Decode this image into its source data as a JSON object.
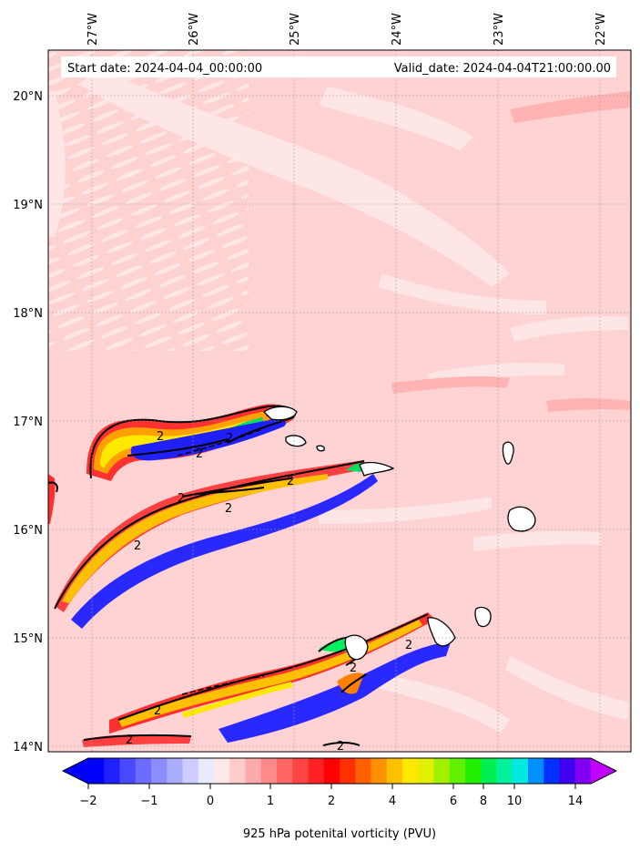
{
  "header": {
    "start": "Start date: 2024-04-04_00:00:00",
    "valid": "Valid_date: 2024-04-04T21:00:00.00"
  },
  "lon_labels": [
    "27°W",
    "26°W",
    "25°W",
    "24°W",
    "23°W",
    "22°W"
  ],
  "lat_labels": [
    "20°N",
    "19°N",
    "18°N",
    "17°N",
    "16°N",
    "15°N",
    "14°N"
  ],
  "contour_label": "2",
  "colorbar": {
    "title": "925 hPa potenital vorticity (PVU)",
    "tick_labels": [
      "−2",
      "−1",
      "0",
      "1",
      "2",
      "4",
      "6",
      "8",
      "10",
      "14"
    ],
    "colors": [
      "#0000ff",
      "#2020ff",
      "#4848ff",
      "#6c6cff",
      "#8c8cff",
      "#acacff",
      "#ccccff",
      "#eaeaff",
      "#ffe8e8",
      "#ffcccc",
      "#ffaaaa",
      "#ff8888",
      "#ff6666",
      "#ff4444",
      "#ff2222",
      "#ff0000",
      "#ff3000",
      "#ff6000",
      "#ff9000",
      "#ffc000",
      "#ffe800",
      "#e0f000",
      "#a0f000",
      "#60f000",
      "#20f000",
      "#00f050",
      "#00f0a0",
      "#00e8e0",
      "#0090ff",
      "#0030ff",
      "#4000f0",
      "#8000f0"
    ],
    "under_color": "#0000ff",
    "over_color": "#c000ff"
  }
}
